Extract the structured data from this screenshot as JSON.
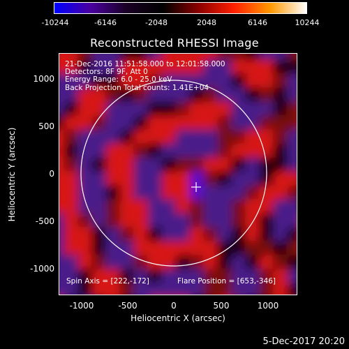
{
  "colorbar": {
    "ticks": [
      "-10244",
      "-6146",
      "-2048",
      "2048",
      "6146",
      "10244"
    ],
    "colors": [
      "#0000ff",
      "#4a00a0",
      "#1a0025",
      "#000000",
      "#8a0000",
      "#ff2000",
      "#ff9900",
      "#ffffff"
    ]
  },
  "title": "Reconstructed RHESSI Image",
  "info": {
    "time_range": "21-Dec-2016 11:51:58.000 to 12:01:58.000",
    "detectors": "Detectors: 8F 9F, Att 0",
    "energy": "Energy Range: 6.0 - 25.0 keV",
    "method_counts": "Back Projection    Total counts: 1.41E+04",
    "spin_axis": "Spin Axis = [222,-172]",
    "flare_position": "Flare Position = [653,-346]"
  },
  "axes": {
    "xlabel": "Heliocentric X (arcsec)",
    "ylabel": "Heliocentric Y (arcsec)",
    "xticks": [
      "-1000",
      "-500",
      "0",
      "500",
      "1000"
    ],
    "yticks": [
      "1000",
      "500",
      "0",
      "-500",
      "-1000"
    ],
    "xlim": [
      -1300,
      1300
    ],
    "ylim": [
      -1250,
      1250
    ]
  },
  "footer": {
    "date": "5-Dec-2017 20:20"
  }
}
